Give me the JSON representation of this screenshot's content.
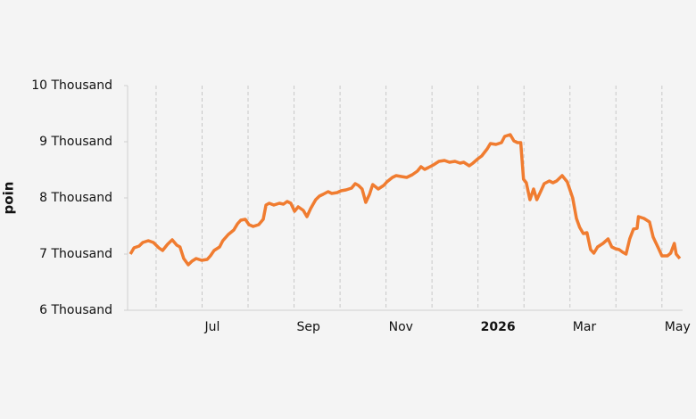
{
  "chart_data": {
    "type": "line",
    "ylabel": "poin",
    "ylim": [
      6000,
      10000
    ],
    "yticks": [
      {
        "value": 6000,
        "label": "6 Thousand"
      },
      {
        "value": 7000,
        "label": "7 Thousand"
      },
      {
        "value": 8000,
        "label": "8 Thousand"
      },
      {
        "value": 9000,
        "label": "9 Thousand"
      },
      {
        "value": 10000,
        "label": "10 Thousand"
      }
    ],
    "xlim": [
      4.38,
      16.45
    ],
    "xticks": [
      {
        "value": 6,
        "label": "Jul"
      },
      {
        "value": 8,
        "label": "Sep"
      },
      {
        "value": 10,
        "label": "Nov"
      },
      {
        "value": 12,
        "label": "2026"
      },
      {
        "value": 14,
        "label": "Mar"
      },
      {
        "value": 16,
        "label": "May"
      }
    ],
    "xgrid": [
      5,
      6,
      7,
      8,
      9,
      10,
      11,
      12,
      13,
      14,
      15,
      16
    ],
    "color": "#f07c30",
    "x": [
      4.44,
      4.52,
      4.63,
      4.71,
      4.83,
      4.94,
      5.06,
      5.14,
      5.25,
      5.35,
      5.45,
      5.52,
      5.6,
      5.7,
      5.78,
      5.87,
      5.99,
      6.11,
      6.18,
      6.26,
      6.38,
      6.45,
      6.57,
      6.69,
      6.77,
      6.84,
      6.94,
      7.02,
      7.11,
      7.23,
      7.33,
      7.39,
      7.46,
      7.56,
      7.68,
      7.77,
      7.85,
      7.93,
      8.01,
      8.09,
      8.2,
      8.28,
      8.36,
      8.47,
      8.55,
      8.63,
      8.74,
      8.82,
      8.94,
      9.02,
      9.13,
      9.25,
      9.33,
      9.4,
      9.48,
      9.56,
      9.64,
      9.71,
      9.83,
      9.95,
      10.02,
      10.14,
      10.22,
      10.33,
      10.45,
      10.57,
      10.68,
      10.76,
      10.84,
      10.92,
      11.03,
      11.15,
      11.27,
      11.38,
      11.5,
      11.61,
      11.69,
      11.81,
      11.89,
      12.0,
      12.08,
      12.2,
      12.27,
      12.39,
      12.51,
      12.58,
      12.7,
      12.78,
      12.86,
      12.93,
      12.99,
      13.05,
      13.13,
      13.21,
      13.28,
      13.36,
      13.44,
      13.55,
      13.63,
      13.71,
      13.83,
      13.94,
      14.06,
      14.14,
      14.21,
      14.29,
      14.37,
      14.45,
      14.52,
      14.6,
      14.72,
      14.83,
      14.91,
      14.99,
      15.07,
      15.15,
      15.22,
      15.3,
      15.38,
      15.46,
      15.49,
      15.61,
      15.73,
      15.81,
      15.92,
      16.0,
      16.12,
      16.19,
      16.27,
      16.31,
      16.39
    ],
    "values": [
      7000,
      7111,
      7143,
      7206,
      7238,
      7206,
      7111,
      7063,
      7175,
      7254,
      7159,
      7127,
      6921,
      6810,
      6873,
      6921,
      6889,
      6905,
      6968,
      7063,
      7127,
      7238,
      7349,
      7429,
      7540,
      7603,
      7619,
      7524,
      7492,
      7524,
      7619,
      7873,
      7905,
      7873,
      7905,
      7889,
      7937,
      7905,
      7762,
      7841,
      7778,
      7667,
      7810,
      7968,
      8032,
      8063,
      8111,
      8079,
      8095,
      8127,
      8143,
      8175,
      8254,
      8222,
      8159,
      7921,
      8063,
      8238,
      8159,
      8222,
      8286,
      8365,
      8397,
      8381,
      8365,
      8413,
      8476,
      8556,
      8508,
      8540,
      8587,
      8651,
      8667,
      8635,
      8651,
      8619,
      8635,
      8571,
      8619,
      8698,
      8746,
      8873,
      8968,
      8952,
      8984,
      9095,
      9127,
      9016,
      8984,
      8984,
      8333,
      8270,
      7968,
      8159,
      7968,
      8111,
      8254,
      8302,
      8270,
      8302,
      8397,
      8286,
      8000,
      7635,
      7476,
      7365,
      7381,
      7079,
      7016,
      7127,
      7190,
      7270,
      7127,
      7095,
      7079,
      7032,
      7000,
      7270,
      7444,
      7460,
      7667,
      7635,
      7571,
      7302,
      7111,
      6968,
      6968,
      7016,
      7190,
      7000,
      6921
    ]
  }
}
